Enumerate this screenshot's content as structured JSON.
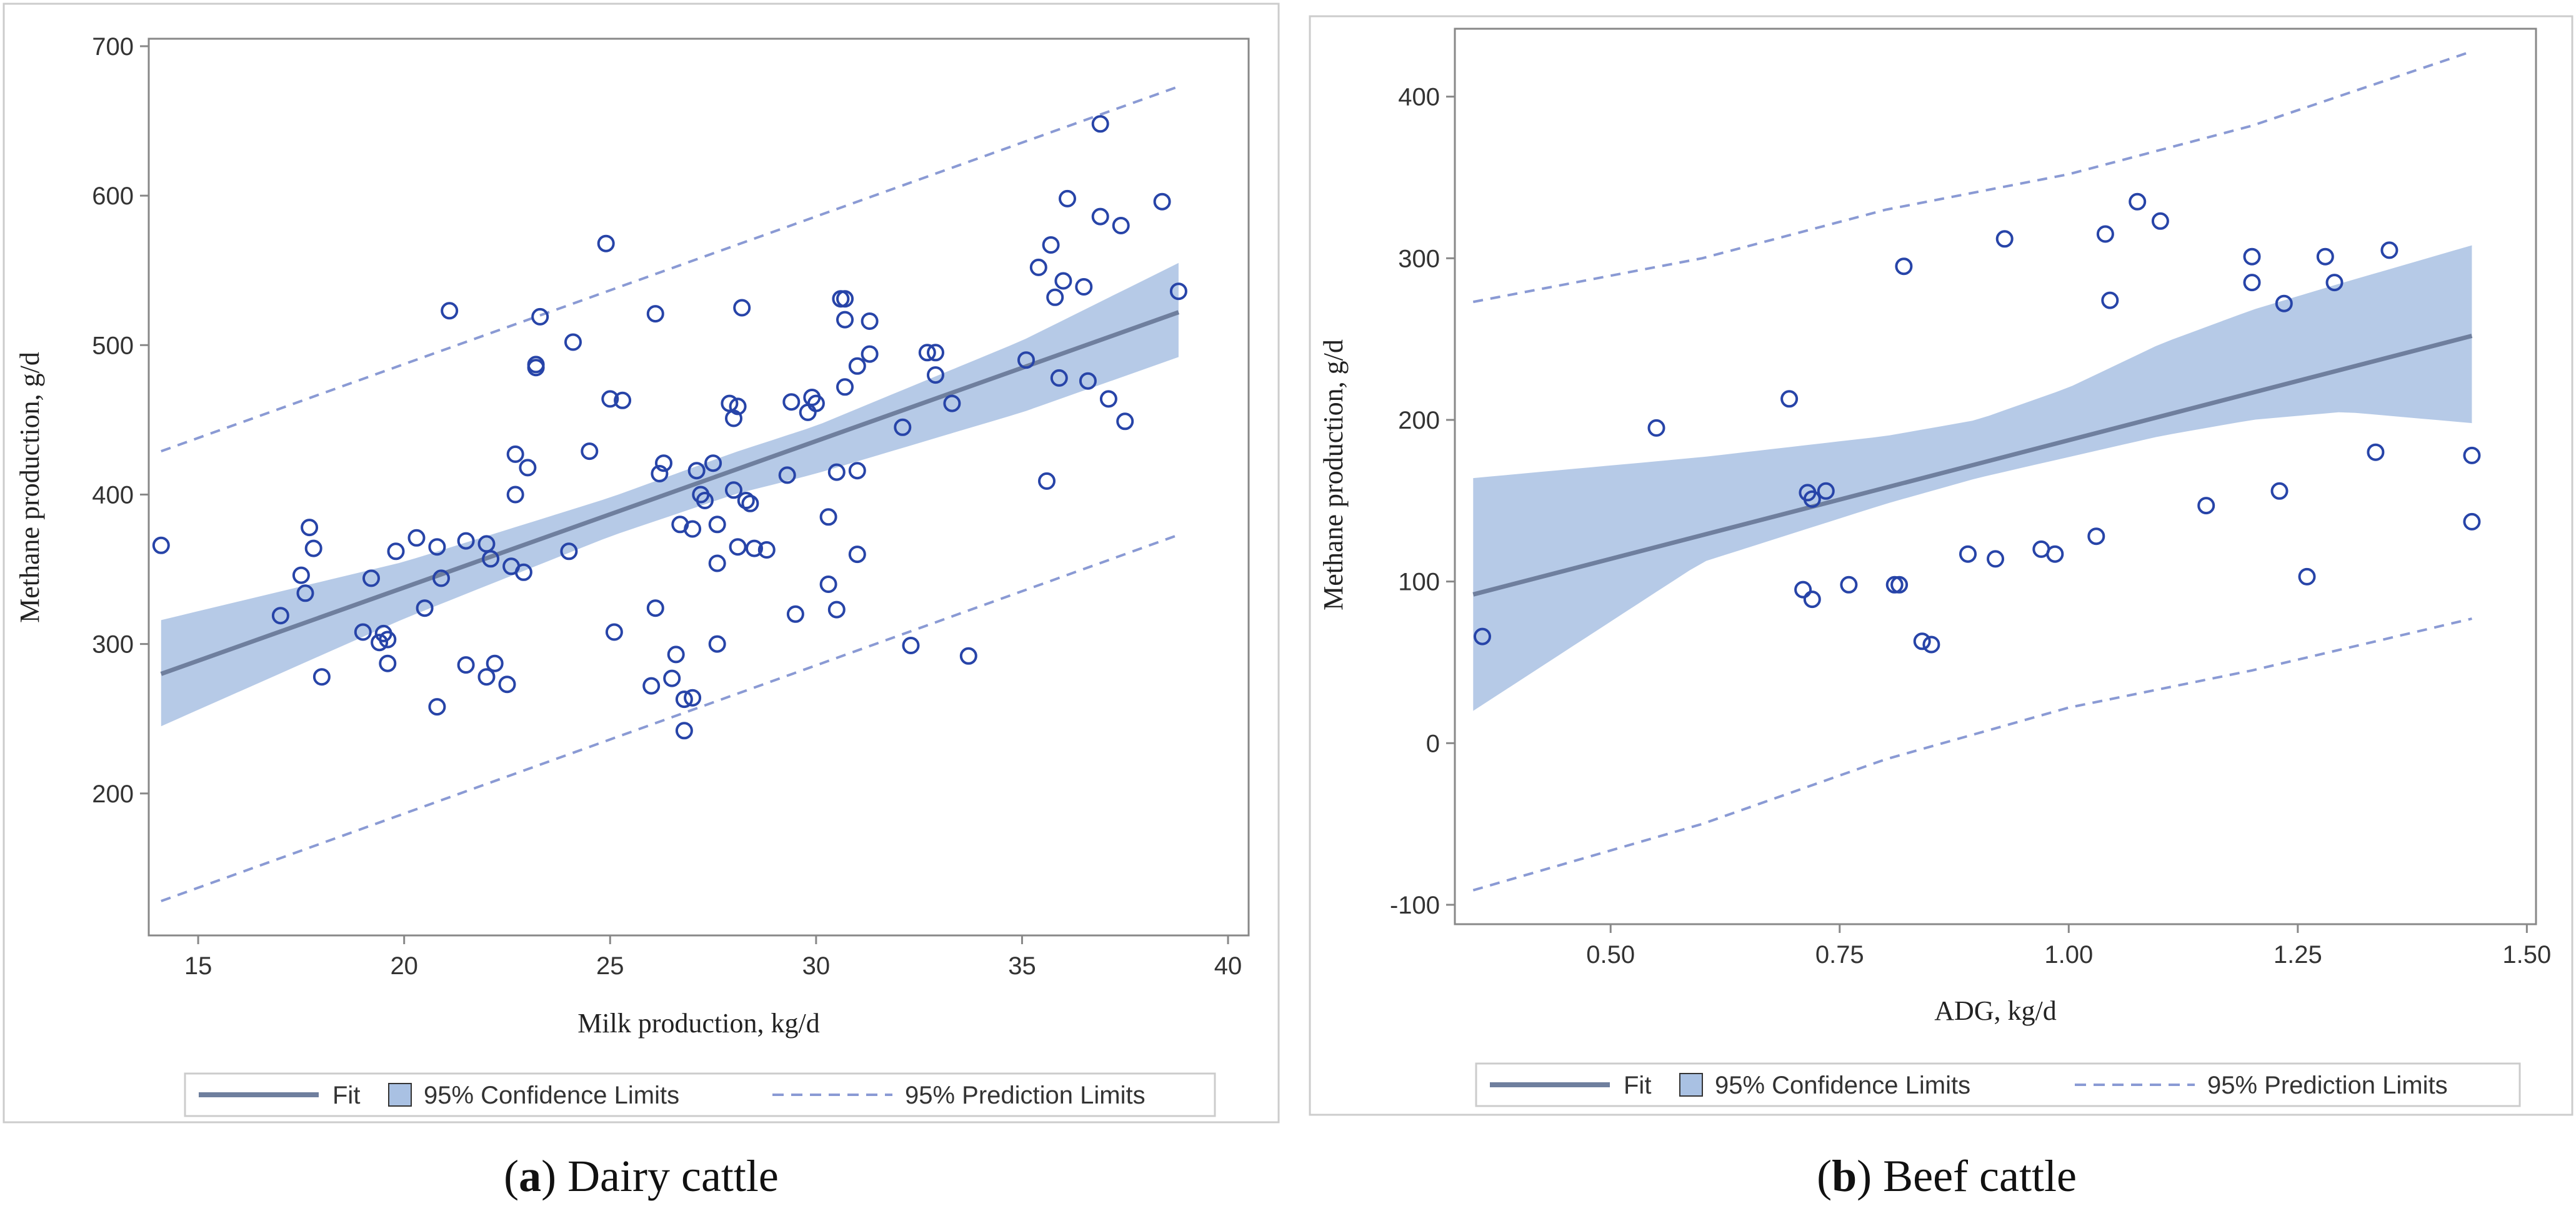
{
  "chart_data": [
    {
      "type": "scatter",
      "panel": "a",
      "caption_letter": "a",
      "caption_open": "(",
      "caption_close": ")",
      "caption_text": "Dairy cattle",
      "xlabel": "Milk production, kg/d",
      "ylabel": "Methane production, g/d",
      "xlim": [
        13.8,
        40.5
      ],
      "ylim": [
        105,
        705
      ],
      "xticks": [
        15,
        20,
        25,
        30,
        35,
        40
      ],
      "yticks": [
        200,
        300,
        400,
        500,
        600,
        700
      ],
      "fit": {
        "x": [
          14.1,
          38.8
        ],
        "y": [
          280,
          522
        ]
      },
      "confidence_band": {
        "x": [
          14.1,
          20,
          25,
          28,
          30,
          35,
          38.8
        ],
        "lower": [
          245,
          317,
          372,
          400,
          414,
          455,
          492
        ],
        "upper": [
          316,
          355,
          398,
          428,
          446,
          503,
          555
        ]
      },
      "prediction_band": {
        "x": [
          14.1,
          38.8
        ],
        "lower": [
          128,
          373
        ],
        "upper": [
          429,
          673
        ]
      },
      "points": [
        [
          14.1,
          366
        ],
        [
          17,
          319
        ],
        [
          17.5,
          346
        ],
        [
          17.6,
          334
        ],
        [
          17.7,
          378
        ],
        [
          17.8,
          364
        ],
        [
          18,
          278
        ],
        [
          19,
          308
        ],
        [
          19.2,
          344
        ],
        [
          19.4,
          301
        ],
        [
          19.5,
          307
        ],
        [
          19.6,
          287
        ],
        [
          19.6,
          303
        ],
        [
          19.8,
          362
        ],
        [
          20.3,
          371
        ],
        [
          20.5,
          324
        ],
        [
          20.8,
          365
        ],
        [
          20.8,
          258
        ],
        [
          20.9,
          344
        ],
        [
          21.1,
          523
        ],
        [
          21.5,
          369
        ],
        [
          21.5,
          286
        ],
        [
          22,
          367
        ],
        [
          22,
          278
        ],
        [
          22.1,
          357
        ],
        [
          22.2,
          287
        ],
        [
          22.5,
          273
        ],
        [
          22.6,
          352
        ],
        [
          22.7,
          427
        ],
        [
          22.7,
          400
        ],
        [
          22.9,
          348
        ],
        [
          23,
          418
        ],
        [
          23.2,
          487
        ],
        [
          23.2,
          485
        ],
        [
          23.3,
          519
        ],
        [
          24,
          362
        ],
        [
          24.1,
          502
        ],
        [
          24.5,
          429
        ],
        [
          24.9,
          568
        ],
        [
          25,
          464
        ],
        [
          25.1,
          308
        ],
        [
          25.3,
          463
        ],
        [
          26,
          272
        ],
        [
          26.1,
          324
        ],
        [
          26.1,
          521
        ],
        [
          26.2,
          414
        ],
        [
          26.3,
          421
        ],
        [
          26.5,
          277
        ],
        [
          26.6,
          293
        ],
        [
          26.7,
          380
        ],
        [
          26.8,
          263
        ],
        [
          26.8,
          242
        ],
        [
          27,
          377
        ],
        [
          27,
          264
        ],
        [
          27.1,
          416
        ],
        [
          27.2,
          400
        ],
        [
          27.3,
          396
        ],
        [
          27.5,
          421
        ],
        [
          27.6,
          300
        ],
        [
          27.6,
          354
        ],
        [
          27.6,
          380
        ],
        [
          27.9,
          461
        ],
        [
          28,
          403
        ],
        [
          28,
          451
        ],
        [
          28.1,
          365
        ],
        [
          28.1,
          459
        ],
        [
          28.2,
          525
        ],
        [
          28.3,
          396
        ],
        [
          28.4,
          394
        ],
        [
          28.5,
          364
        ],
        [
          28.8,
          363
        ],
        [
          29.3,
          413
        ],
        [
          29.4,
          462
        ],
        [
          29.5,
          320
        ],
        [
          29.8,
          455
        ],
        [
          29.9,
          465
        ],
        [
          30,
          461
        ],
        [
          30.3,
          385
        ],
        [
          30.3,
          340
        ],
        [
          30.5,
          323
        ],
        [
          30.5,
          415
        ],
        [
          30.7,
          472
        ],
        [
          30.6,
          531
        ],
        [
          30.7,
          531
        ],
        [
          30.7,
          517
        ],
        [
          31,
          360
        ],
        [
          31,
          416
        ],
        [
          31,
          486
        ],
        [
          31.3,
          494
        ],
        [
          31.3,
          516
        ],
        [
          32.1,
          445
        ],
        [
          32.3,
          299
        ],
        [
          32.7,
          495
        ],
        [
          32.9,
          480
        ],
        [
          32.9,
          495
        ],
        [
          33.3,
          461
        ],
        [
          33.7,
          292
        ],
        [
          35.1,
          490
        ],
        [
          35.4,
          552
        ],
        [
          35.6,
          409
        ],
        [
          35.7,
          567
        ],
        [
          35.8,
          532
        ],
        [
          35.9,
          478
        ],
        [
          36,
          543
        ],
        [
          36.1,
          598
        ],
        [
          36.5,
          539
        ],
        [
          36.6,
          476
        ],
        [
          36.9,
          648
        ],
        [
          36.9,
          586
        ],
        [
          37.1,
          464
        ],
        [
          37.4,
          580
        ],
        [
          37.5,
          449
        ],
        [
          38.4,
          596
        ],
        [
          38.8,
          536
        ]
      ],
      "legend": [
        "Fit",
        "95% Confidence Limits",
        "95% Prediction Limits"
      ]
    },
    {
      "type": "scatter",
      "panel": "b",
      "caption_letter": "b",
      "caption_open": "(",
      "caption_close": ")",
      "caption_text": "Beef cattle",
      "xlabel": "ADG, kg/d",
      "ylabel": "Methane production, g/d",
      "xlim": [
        0.33,
        1.51
      ],
      "ylim": [
        -112,
        442
      ],
      "xticks": [
        0.5,
        0.75,
        1.0,
        1.25,
        1.5
      ],
      "xtick_labels": [
        "0.50",
        "0.75",
        "1.00",
        "1.25",
        "1.50"
      ],
      "yticks": [
        -100,
        0,
        100,
        200,
        300,
        400
      ],
      "fit": {
        "x": [
          0.35,
          1.44
        ],
        "y": [
          92,
          252
        ]
      },
      "confidence_band": {
        "x": [
          0.35,
          0.6,
          0.8,
          0.9,
          1.0,
          1.1,
          1.2,
          1.3,
          1.44
        ],
        "lower": [
          20,
          112,
          148,
          164,
          177,
          190,
          200,
          205,
          198
        ],
        "upper": [
          164,
          177,
          190,
          200,
          220,
          247,
          268,
          285,
          308
        ]
      },
      "prediction_band": {
        "x": [
          0.35,
          0.6,
          0.8,
          1.0,
          1.2,
          1.44
        ],
        "lower": [
          -91,
          -50,
          -10,
          22,
          45,
          77
        ],
        "upper": [
          273,
          300,
          330,
          352,
          382,
          428
        ]
      },
      "points": [
        [
          0.36,
          66
        ],
        [
          0.55,
          195
        ],
        [
          0.695,
          213
        ],
        [
          0.71,
          95
        ],
        [
          0.715,
          155
        ],
        [
          0.72,
          151
        ],
        [
          0.72,
          89
        ],
        [
          0.735,
          156
        ],
        [
          0.76,
          98
        ],
        [
          0.81,
          98
        ],
        [
          0.815,
          98
        ],
        [
          0.82,
          295
        ],
        [
          0.84,
          63
        ],
        [
          0.85,
          61
        ],
        [
          0.89,
          117
        ],
        [
          0.92,
          114
        ],
        [
          0.93,
          312
        ],
        [
          0.97,
          120
        ],
        [
          0.985,
          117
        ],
        [
          1.03,
          128
        ],
        [
          1.04,
          315
        ],
        [
          1.045,
          274
        ],
        [
          1.075,
          335
        ],
        [
          1.1,
          323
        ],
        [
          1.15,
          147
        ],
        [
          1.2,
          301
        ],
        [
          1.2,
          285
        ],
        [
          1.23,
          156
        ],
        [
          1.235,
          272
        ],
        [
          1.26,
          103
        ],
        [
          1.28,
          301
        ],
        [
          1.29,
          285
        ],
        [
          1.335,
          180
        ],
        [
          1.35,
          305
        ],
        [
          1.44,
          178
        ],
        [
          1.44,
          137
        ]
      ],
      "legend": [
        "Fit",
        "95% Confidence Limits",
        "95% Prediction Limits"
      ]
    }
  ],
  "colors": {
    "fit": "#6f7f9e",
    "confidence": "#a9c1e3",
    "prediction": "#8a9ad4",
    "marker": "#2744a8",
    "axis": "#888888",
    "frame": "#cccccc"
  }
}
